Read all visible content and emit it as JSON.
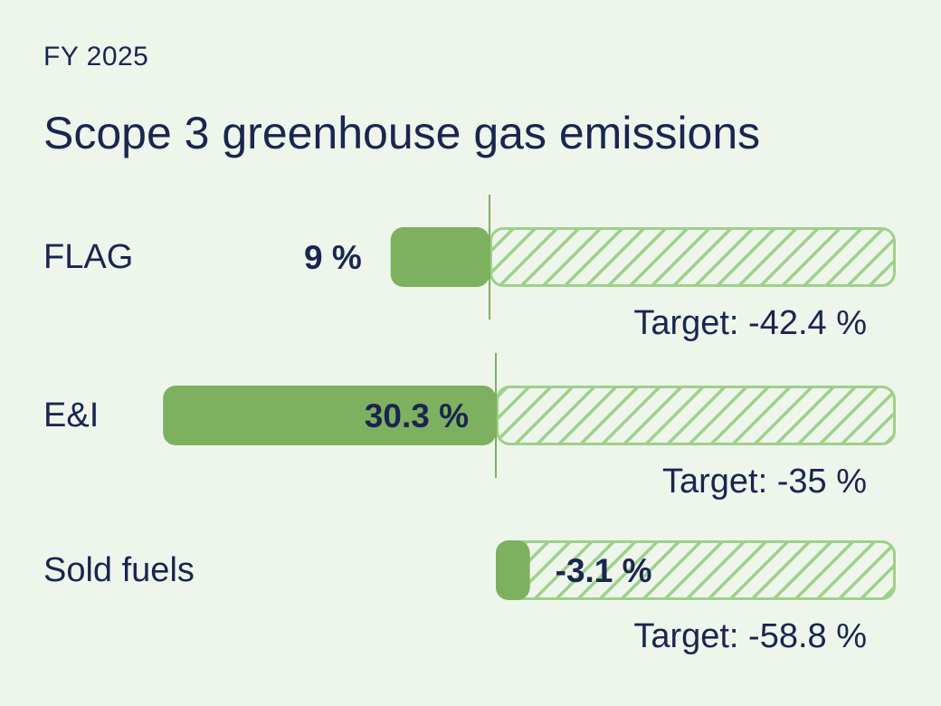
{
  "header": {
    "year": "FY 2025",
    "title": "Scope 3 greenhouse gas emissions"
  },
  "colors": {
    "background": "#eef6ec",
    "bar_fill": "#7db05f",
    "target_stroke": "#9fd08a",
    "text": "#1a2550"
  },
  "chart_data": {
    "type": "bar",
    "orientation": "horizontal",
    "categories": [
      "FLAG",
      "E&I",
      "Sold fuels"
    ],
    "series": [
      {
        "values": [
          -9,
          -30.3,
          3.1
        ],
        "value_labels": [
          "9 %",
          "30.3 %",
          "-3.1 %"
        ]
      },
      {
        "values": [
          42.4,
          35,
          58.8
        ],
        "value_labels": [
          "Target: -42.4 %",
          "Target: -35 %",
          "Target: -58.8 %"
        ]
      }
    ],
    "bar_styles": [
      "solid",
      "hatched"
    ],
    "grid": false,
    "legend": "none",
    "title": "Scope 3 greenhouse gas emissions",
    "subtitle": "FY 2025"
  }
}
